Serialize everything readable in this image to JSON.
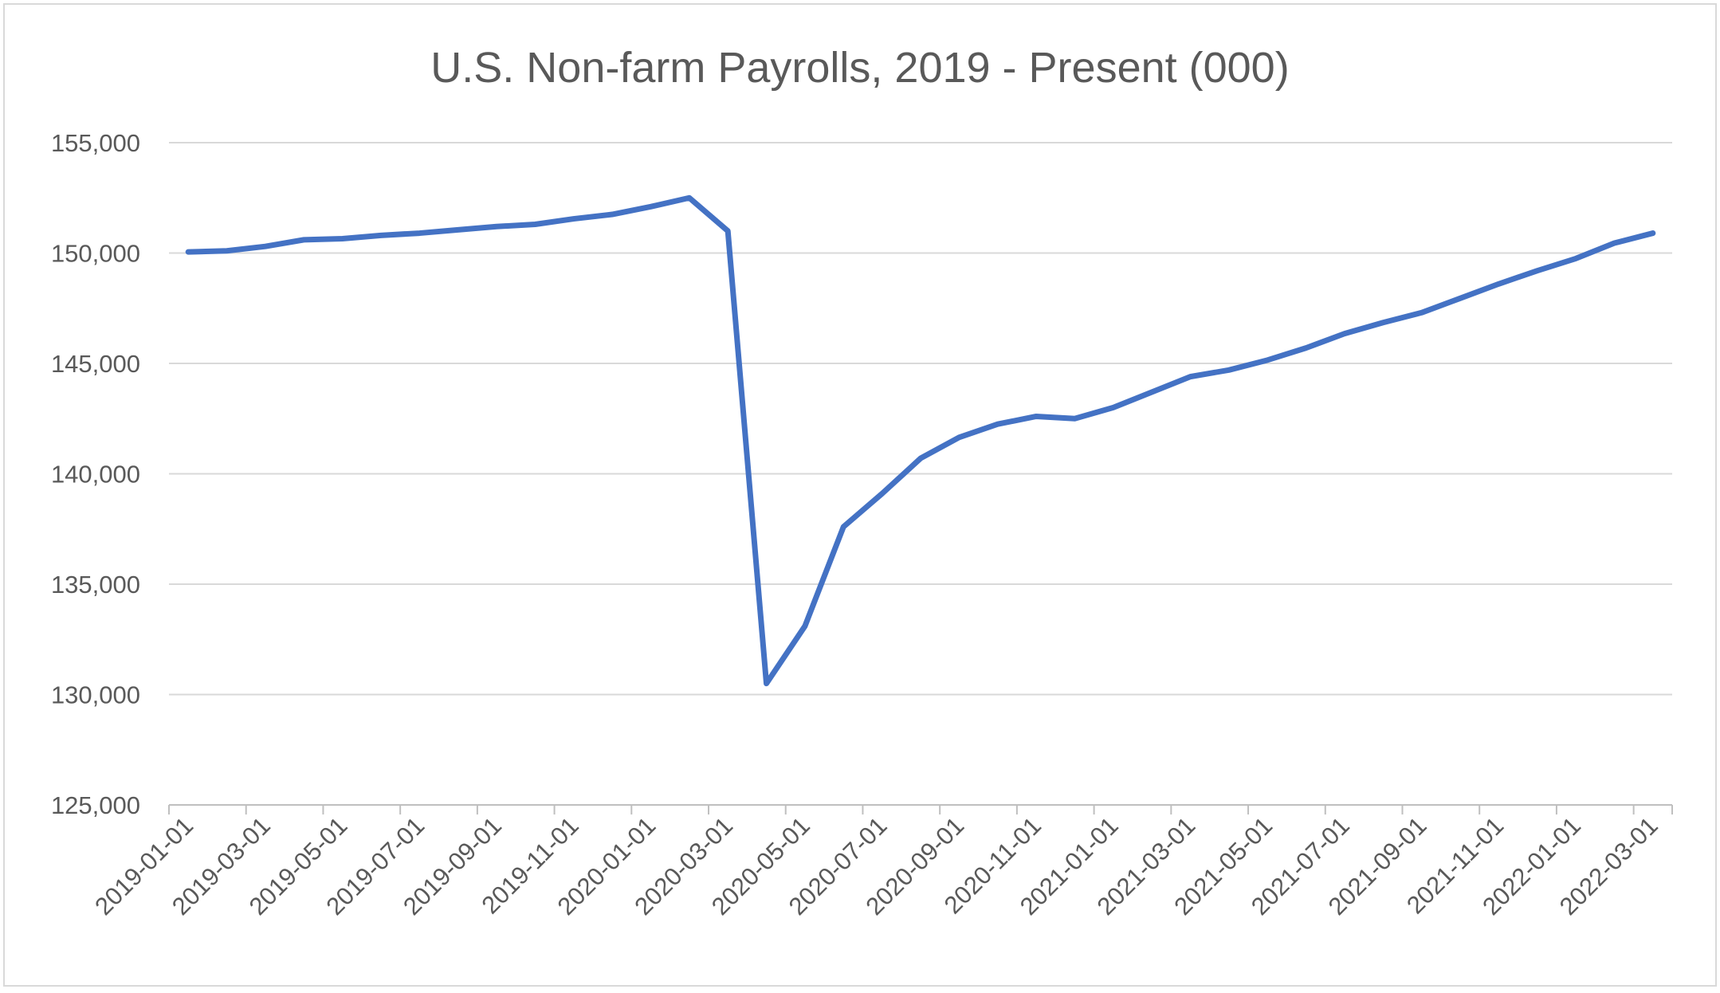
{
  "chart_data": {
    "type": "line",
    "title": "U.S. Non-farm Payrolls, 2019 - Present (000)",
    "xlabel": "",
    "ylabel": "",
    "ylim": [
      125000,
      155000
    ],
    "yticks": [
      125000,
      130000,
      135000,
      140000,
      145000,
      150000,
      155000
    ],
    "ytick_labels": [
      "125,000",
      "130,000",
      "135,000",
      "140,000",
      "145,000",
      "150,000",
      "155,000"
    ],
    "xtick_labels": [
      "2019-01-01",
      "2019-03-01",
      "2019-05-01",
      "2019-07-01",
      "2019-09-01",
      "2019-11-01",
      "2020-01-01",
      "2020-03-01",
      "2020-05-01",
      "2020-07-01",
      "2020-09-01",
      "2020-11-01",
      "2021-01-01",
      "2021-03-01",
      "2021-05-01",
      "2021-07-01",
      "2021-09-01",
      "2021-11-01",
      "2022-01-01",
      "2022-03-01"
    ],
    "grid": true,
    "legend": "none",
    "series": [
      {
        "color": "#4472c4",
        "x": [
          "2019-01",
          "2019-02",
          "2019-03",
          "2019-04",
          "2019-05",
          "2019-06",
          "2019-07",
          "2019-08",
          "2019-09",
          "2019-10",
          "2019-11",
          "2019-12",
          "2020-01",
          "2020-02",
          "2020-03",
          "2020-04",
          "2020-05",
          "2020-06",
          "2020-07",
          "2020-08",
          "2020-09",
          "2020-10",
          "2020-11",
          "2020-12",
          "2021-01",
          "2021-02",
          "2021-03",
          "2021-04",
          "2021-05",
          "2021-06",
          "2021-07",
          "2021-08",
          "2021-09",
          "2021-10",
          "2021-11",
          "2021-12",
          "2022-01",
          "2022-02",
          "2022-03"
        ],
        "values": [
          150050,
          150100,
          150300,
          150600,
          150650,
          150800,
          150900,
          151050,
          151200,
          151300,
          151550,
          151750,
          152100,
          152500,
          151000,
          130500,
          133100,
          137600,
          139100,
          140700,
          141650,
          142250,
          142600,
          142500,
          143000,
          143700,
          144400,
          144700,
          145150,
          145700,
          146350,
          146850,
          147300,
          147950,
          148600,
          149200,
          149750,
          150450,
          150900
        ]
      }
    ]
  }
}
